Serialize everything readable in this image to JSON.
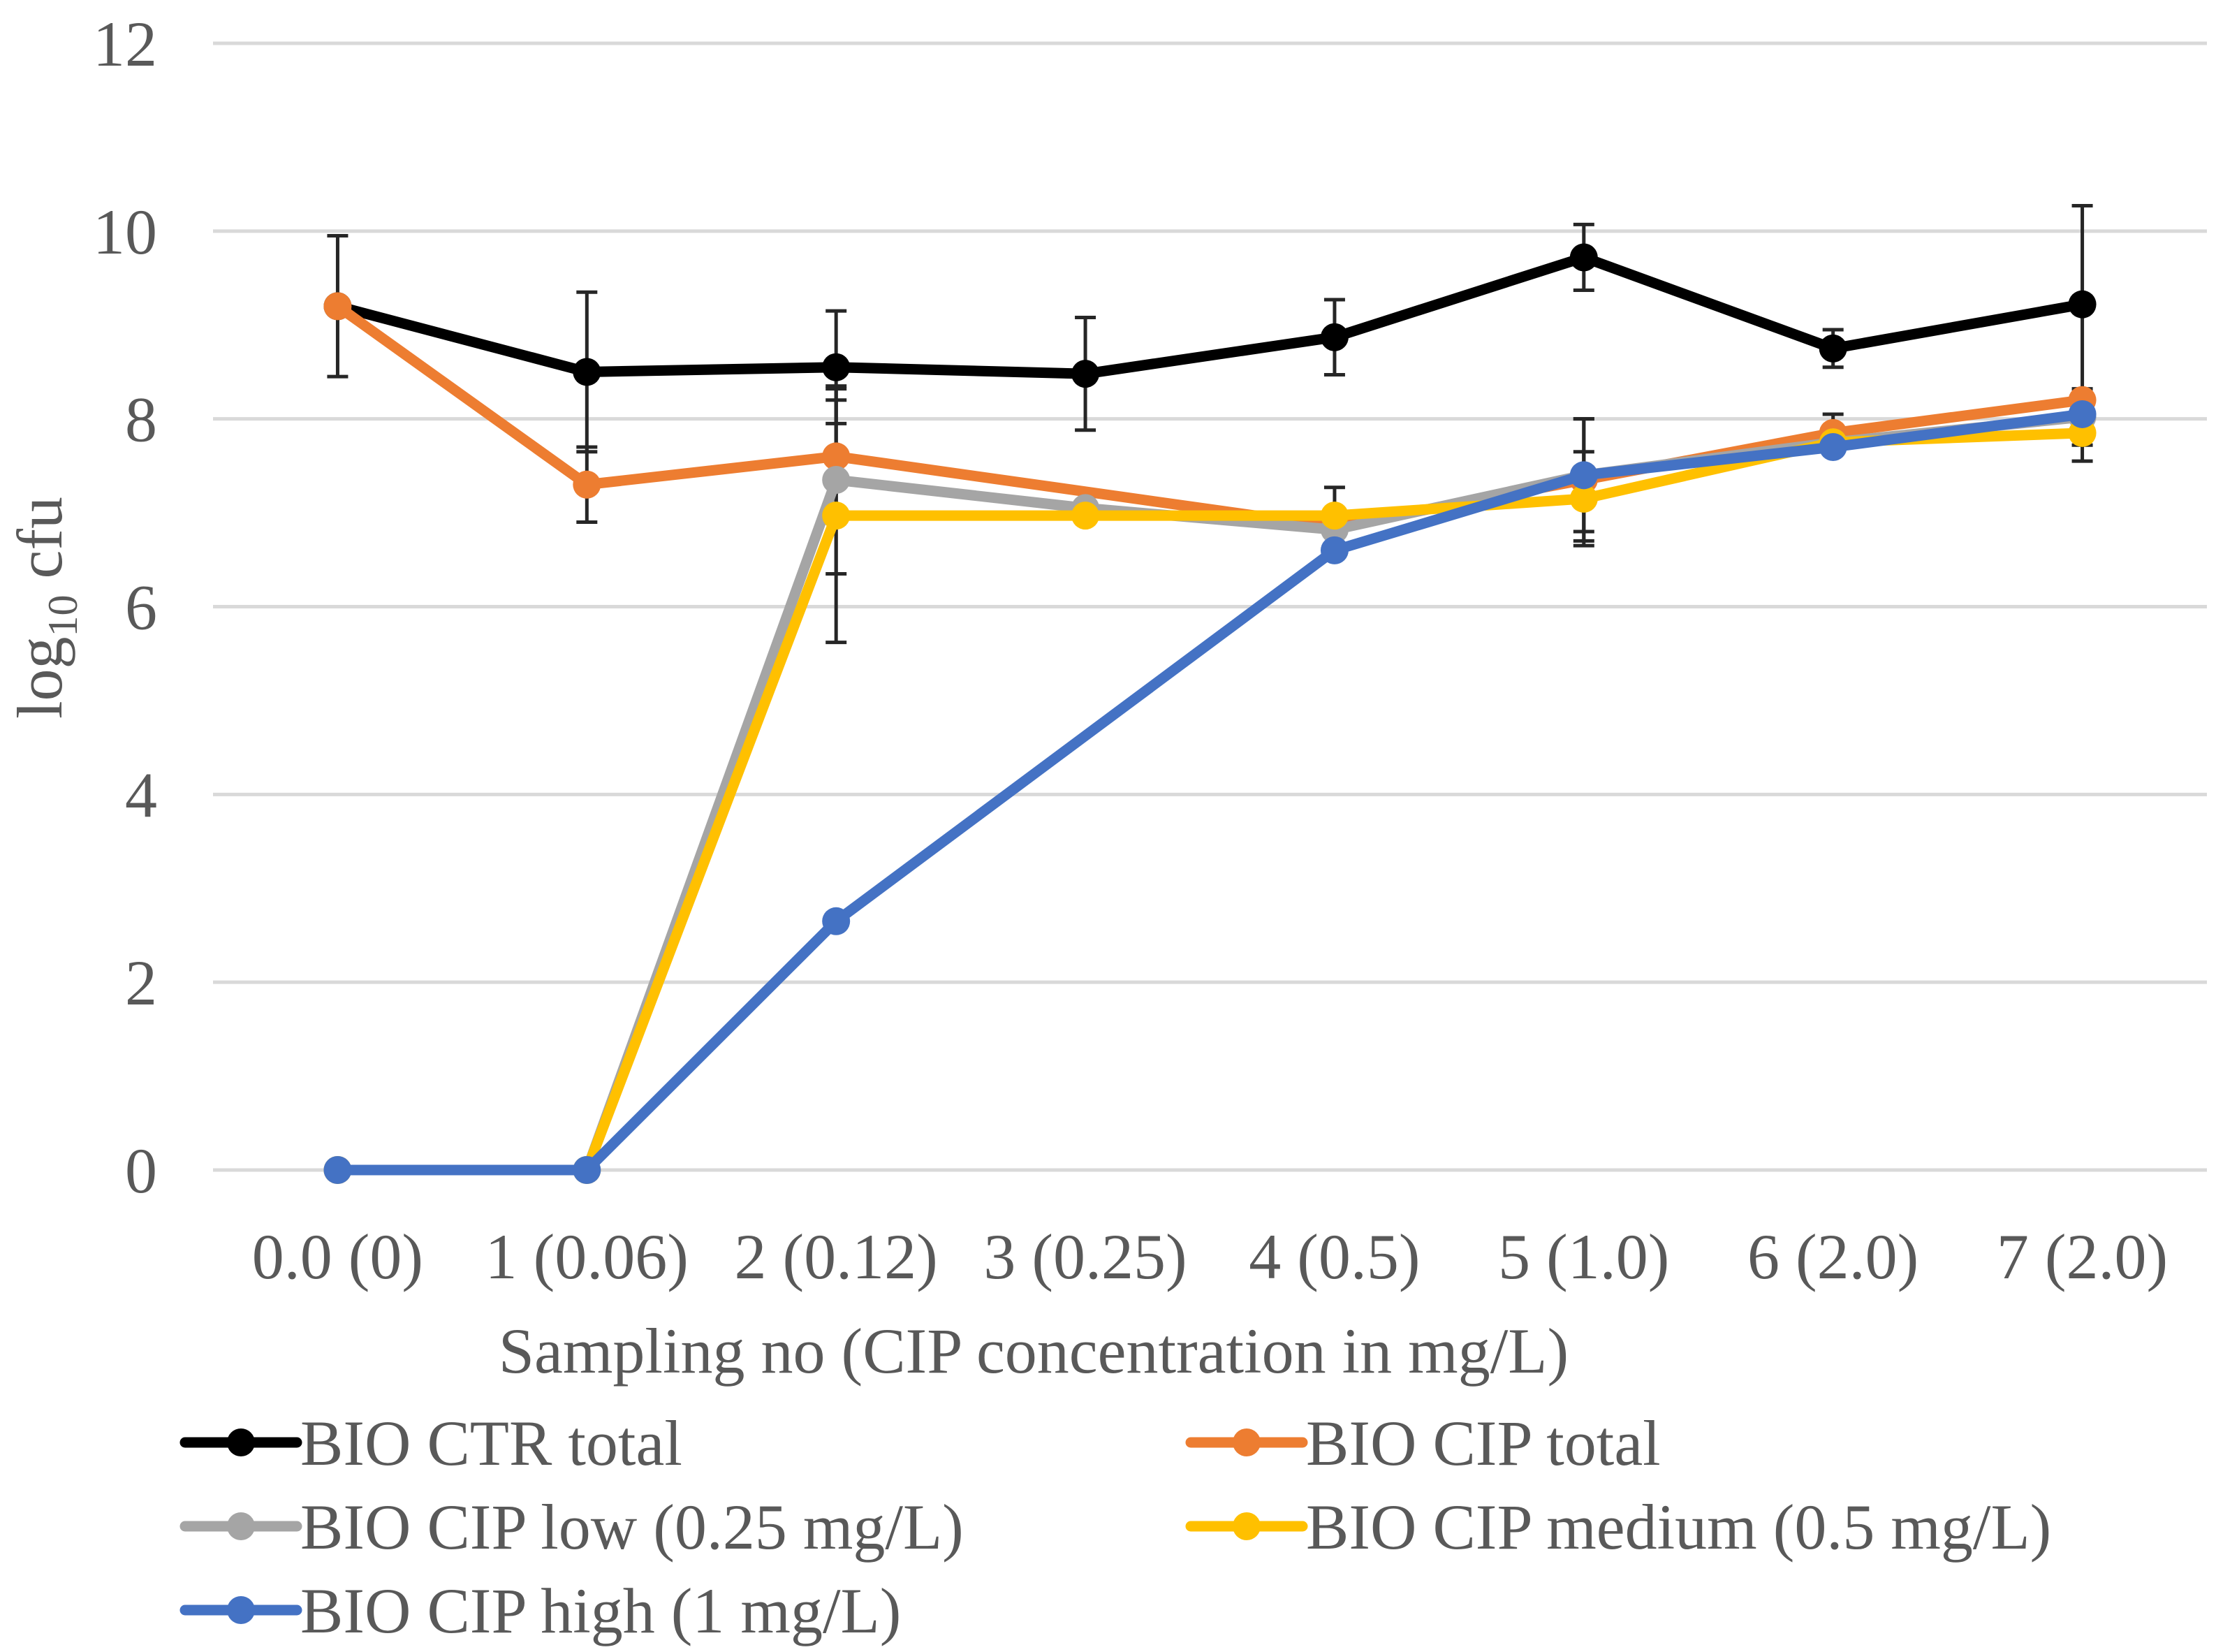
{
  "chart_data": {
    "type": "line",
    "title": "",
    "xlabel": "Sampling no (CIP concentration in mg/L)",
    "ylabel_main": "log",
    "ylabel_sub": "10",
    "ylabel_tail": " cfu",
    "ylim": [
      0,
      12
    ],
    "yticks": [
      0,
      2,
      4,
      6,
      8,
      10,
      12
    ],
    "ytick_labels": [
      "0",
      "2",
      "4",
      "6",
      "8",
      "10",
      "12"
    ],
    "grid": true,
    "legend_position": "bottom",
    "categories": [
      "0.0 (0)",
      "1 (0.06)",
      "2 (0.12)",
      "3 (0.25)",
      "4 (0.5)",
      "5 (1.0)",
      "6 (2.0)",
      "7 (2.0)"
    ],
    "series": [
      {
        "name": "BIO CTR total",
        "color": "#000000",
        "values": [
          9.2,
          8.5,
          8.55,
          8.48,
          8.87,
          9.72,
          8.75,
          9.22
        ],
        "errors": [
          0.75,
          0.85,
          0.6,
          0.6,
          0.4,
          0.35,
          0.2,
          1.05
        ]
      },
      {
        "name": "BIO CIP total",
        "color": "#ED7D31",
        "values": [
          9.2,
          7.3,
          7.6,
          null,
          6.85,
          7.35,
          7.85,
          8.2
        ],
        "errors": [
          null,
          0.4,
          0.6,
          null,
          null,
          0.65,
          0.2,
          null
        ]
      },
      {
        "name": "BIO CIP low (0.25 mg/L)",
        "color": "#A5A5A5",
        "values": [
          0,
          0,
          7.35,
          7.05,
          6.82,
          7.4,
          7.75,
          8.02
        ],
        "errors": [
          null,
          null,
          1.0,
          null,
          null,
          0.6,
          null,
          0.3
        ]
      },
      {
        "name": "BIO CIP medium (0.5 mg/L)",
        "color": "#FFC000",
        "values": [
          0,
          0,
          6.97,
          6.97,
          6.97,
          7.15,
          7.75,
          7.85
        ],
        "errors": [
          null,
          null,
          1.35,
          null,
          0.3,
          0.5,
          null,
          0.3
        ]
      },
      {
        "name": "BIO CIP high (1 mg/L)",
        "color": "#4472C4",
        "values": [
          0,
          0,
          2.65,
          null,
          6.6,
          7.4,
          7.7,
          8.05
        ],
        "errors": [
          null,
          null,
          null,
          null,
          null,
          null,
          null,
          null
        ]
      }
    ]
  }
}
